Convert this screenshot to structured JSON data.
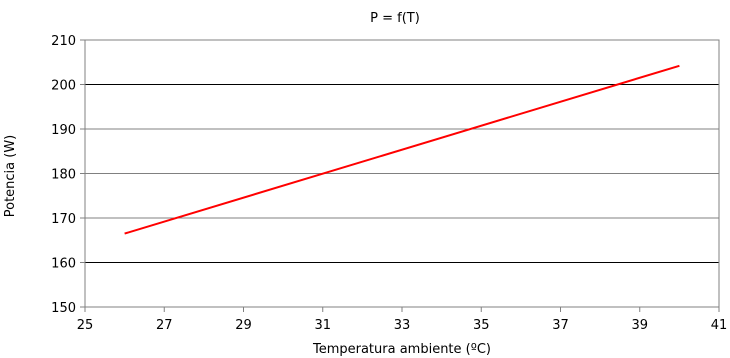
{
  "chart_data": {
    "type": "line",
    "title": "P = f(T)",
    "xlabel": "Temperatura ambiente (ºC)",
    "ylabel": "Potencia (W)",
    "xlim": [
      25,
      41
    ],
    "ylim": [
      150,
      210
    ],
    "xticks": [
      "25",
      "27",
      "29",
      "31",
      "33",
      "35",
      "37",
      "39",
      "41"
    ],
    "yticks": [
      "150",
      "160",
      "170",
      "180",
      "190",
      "200",
      "210"
    ],
    "grid": true,
    "legend": "none",
    "series": [
      {
        "color": "#ff0000",
        "x": [
          26,
          40
        ],
        "y": [
          166.5,
          204.2
        ]
      }
    ]
  }
}
